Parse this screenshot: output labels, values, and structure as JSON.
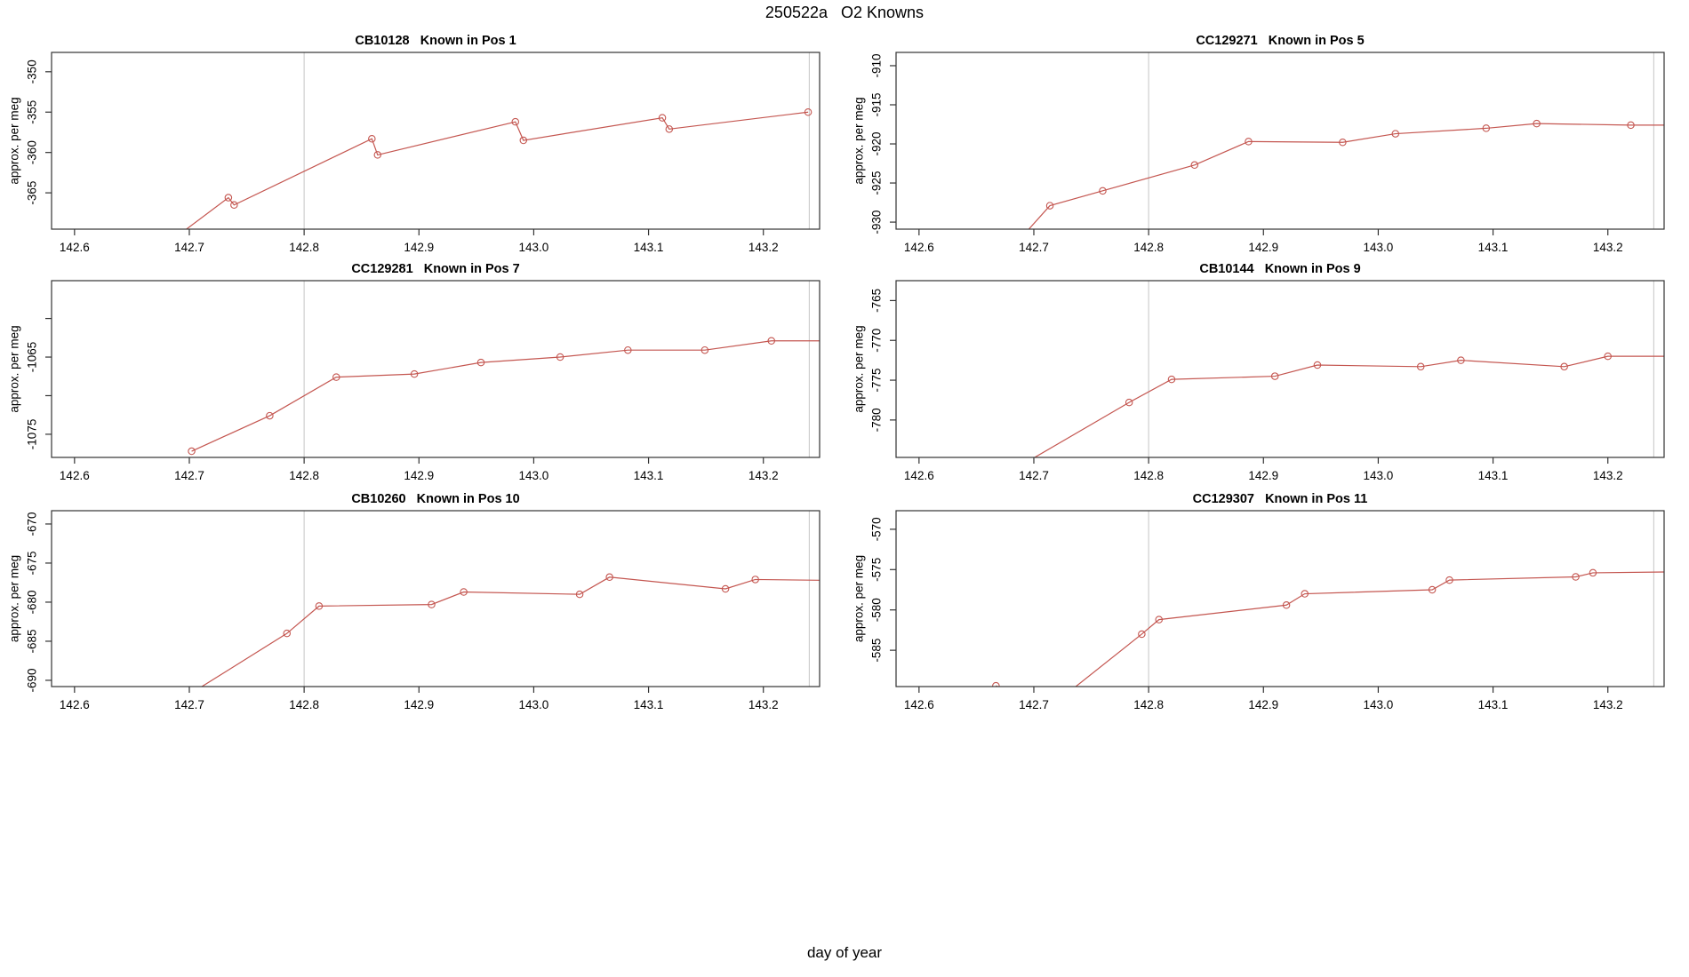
{
  "page_title": "250522a   O2 Knowns",
  "outer_xlabel": "day of year",
  "colors": {
    "series": "#C45650",
    "grid": "#CBCBCB",
    "axis": "#333333",
    "text": "#000000",
    "background": "#FFFFFF"
  },
  "chart_data": [
    {
      "type": "line",
      "title": "CB10128   Known in Pos 1",
      "ylabel": "approx. per meg",
      "xlim": [
        142.58,
        143.249
      ],
      "ylim": [
        -369.5,
        -347.6
      ],
      "xtick_values": [
        142.6,
        142.7,
        142.8,
        142.9,
        143.0,
        143.1,
        143.2
      ],
      "xtick_labels": [
        "142.6",
        "142.7",
        "142.8",
        "142.9",
        "143.0",
        "143.1",
        "143.2"
      ],
      "ytick_values": [
        -350,
        -355,
        -360,
        -365
      ],
      "ytick_labels": [
        "-350",
        "-355",
        "-360",
        "-365"
      ],
      "vlines": [
        142.8,
        143.24
      ],
      "points": [
        {
          "x": 142.69,
          "y": -370.3,
          "m": false
        },
        {
          "x": 142.734,
          "y": -365.6
        },
        {
          "x": 142.739,
          "y": -366.5
        },
        {
          "x": 142.859,
          "y": -358.3
        },
        {
          "x": 142.864,
          "y": -360.3
        },
        {
          "x": 142.984,
          "y": -356.2
        },
        {
          "x": 142.991,
          "y": -358.5
        },
        {
          "x": 143.112,
          "y": -355.7
        },
        {
          "x": 143.118,
          "y": -357.1
        },
        {
          "x": 143.239,
          "y": -355.0
        }
      ]
    },
    {
      "type": "line",
      "title": "CC129271   Known in Pos 5",
      "ylabel": "approx. per meg",
      "xlim": [
        142.58,
        143.249
      ],
      "ylim": [
        -930.9,
        -908.3
      ],
      "xtick_values": [
        142.6,
        142.7,
        142.8,
        142.9,
        143.0,
        143.1,
        143.2
      ],
      "xtick_labels": [
        "142.6",
        "142.7",
        "142.8",
        "142.9",
        "143.0",
        "143.1",
        "143.2"
      ],
      "ytick_values": [
        -910,
        -915,
        -920,
        -925,
        -930
      ],
      "ytick_labels": [
        "-910",
        "-915",
        "-920",
        "-925",
        "-930"
      ],
      "vlines": [
        142.8,
        143.24
      ],
      "points": [
        {
          "x": 142.692,
          "y": -931.5,
          "m": false
        },
        {
          "x": 142.714,
          "y": -927.9
        },
        {
          "x": 142.76,
          "y": -926.0
        },
        {
          "x": 142.84,
          "y": -922.7
        },
        {
          "x": 142.887,
          "y": -919.7
        },
        {
          "x": 142.969,
          "y": -919.8
        },
        {
          "x": 143.015,
          "y": -918.7
        },
        {
          "x": 143.094,
          "y": -918.0
        },
        {
          "x": 143.138,
          "y": -917.4
        },
        {
          "x": 143.22,
          "y": -917.6
        },
        {
          "x": 143.249,
          "y": -917.6,
          "m": false
        }
      ]
    },
    {
      "type": "line",
      "title": "CC129281   Known in Pos 7",
      "ylabel": "approx. per meg",
      "xlim": [
        142.58,
        143.249
      ],
      "ylim": [
        -1078.0,
        -1055.1
      ],
      "xtick_values": [
        142.6,
        142.7,
        142.8,
        142.9,
        143.0,
        143.1,
        143.2
      ],
      "xtick_labels": [
        "142.6",
        "142.7",
        "142.8",
        "142.9",
        "143.0",
        "143.1",
        "143.2"
      ],
      "ytick_values": [
        -1060,
        -1065,
        -1070,
        -1075
      ],
      "ytick_labels": [
        "",
        "-1065",
        "",
        "-1075"
      ],
      "vlines": [
        142.8,
        143.24
      ],
      "points": [
        {
          "x": 142.702,
          "y": -1077.2
        },
        {
          "x": 142.77,
          "y": -1072.6
        },
        {
          "x": 142.828,
          "y": -1067.6
        },
        {
          "x": 142.896,
          "y": -1067.2
        },
        {
          "x": 142.954,
          "y": -1065.7
        },
        {
          "x": 143.023,
          "y": -1065.0
        },
        {
          "x": 143.082,
          "y": -1064.1
        },
        {
          "x": 143.149,
          "y": -1064.1
        },
        {
          "x": 143.207,
          "y": -1062.9
        },
        {
          "x": 143.249,
          "y": -1062.9,
          "m": false
        }
      ]
    },
    {
      "type": "line",
      "title": "CB10144   Known in Pos 9",
      "ylabel": "approx. per meg",
      "xlim": [
        142.58,
        143.249
      ],
      "ylim": [
        -784.7,
        -762.5
      ],
      "xtick_values": [
        142.6,
        142.7,
        142.8,
        142.9,
        143.0,
        143.1,
        143.2
      ],
      "xtick_labels": [
        "142.6",
        "142.7",
        "142.8",
        "142.9",
        "143.0",
        "143.1",
        "143.2"
      ],
      "ytick_values": [
        -765,
        -770,
        -775,
        -780
      ],
      "ytick_labels": [
        "-765",
        "-770",
        "-775",
        "-780"
      ],
      "vlines": [
        142.8,
        143.24
      ],
      "points": [
        {
          "x": 142.69,
          "y": -785.6,
          "m": false
        },
        {
          "x": 142.783,
          "y": -777.8
        },
        {
          "x": 142.82,
          "y": -774.9
        },
        {
          "x": 142.91,
          "y": -774.5
        },
        {
          "x": 142.947,
          "y": -773.1
        },
        {
          "x": 143.037,
          "y": -773.3
        },
        {
          "x": 143.072,
          "y": -772.5
        },
        {
          "x": 143.162,
          "y": -773.3
        },
        {
          "x": 143.2,
          "y": -772.0
        },
        {
          "x": 143.249,
          "y": -772.0,
          "m": false
        }
      ]
    },
    {
      "type": "line",
      "title": "CB10260   Known in Pos 10",
      "ylabel": "approx. per meg",
      "xlim": [
        142.58,
        143.249
      ],
      "ylim": [
        -690.8,
        -668.3
      ],
      "xtick_values": [
        142.6,
        142.7,
        142.8,
        142.9,
        143.0,
        143.1,
        143.2
      ],
      "xtick_labels": [
        "142.6",
        "142.7",
        "142.8",
        "142.9",
        "143.0",
        "143.1",
        "143.2"
      ],
      "ytick_values": [
        -670,
        -675,
        -680,
        -685,
        -690
      ],
      "ytick_labels": [
        "-670",
        "-675",
        "-680",
        "-685",
        "-690"
      ],
      "vlines": [
        142.8,
        143.24
      ],
      "points": [
        {
          "x": 142.7,
          "y": -691.8,
          "m": false
        },
        {
          "x": 142.785,
          "y": -684.0
        },
        {
          "x": 142.813,
          "y": -680.5
        },
        {
          "x": 142.911,
          "y": -680.3
        },
        {
          "x": 142.939,
          "y": -678.7
        },
        {
          "x": 143.04,
          "y": -679.0
        },
        {
          "x": 143.066,
          "y": -676.8
        },
        {
          "x": 143.167,
          "y": -678.3
        },
        {
          "x": 143.193,
          "y": -677.1
        },
        {
          "x": 143.249,
          "y": -677.2,
          "m": false
        }
      ]
    },
    {
      "type": "line",
      "title": "CC129307   Known in Pos 11",
      "ylabel": "approx. per meg",
      "xlim": [
        142.58,
        143.249
      ],
      "ylim": [
        -589.5,
        -567.7
      ],
      "xtick_values": [
        142.6,
        142.7,
        142.8,
        142.9,
        143.0,
        143.1,
        143.2
      ],
      "xtick_labels": [
        "142.6",
        "142.7",
        "142.8",
        "142.9",
        "143.0",
        "143.1",
        "143.2"
      ],
      "ytick_values": [
        -570,
        -575,
        -580,
        -585
      ],
      "ytick_labels": [
        "-570",
        "-575",
        "-580",
        "-585"
      ],
      "vlines": [
        142.8,
        143.24
      ],
      "points": [
        {
          "x": 142.667,
          "y": -589.4
        },
        {
          "x": 142.71,
          "y": -592.5,
          "m": false
        },
        {
          "x": 142.794,
          "y": -583.0
        },
        {
          "x": 142.809,
          "y": -581.2
        },
        {
          "x": 142.92,
          "y": -579.4
        },
        {
          "x": 142.936,
          "y": -578.0
        },
        {
          "x": 143.047,
          "y": -577.5
        },
        {
          "x": 143.062,
          "y": -576.3
        },
        {
          "x": 143.172,
          "y": -575.9
        },
        {
          "x": 143.187,
          "y": -575.4
        },
        {
          "x": 143.249,
          "y": -575.3,
          "m": false
        }
      ]
    }
  ]
}
